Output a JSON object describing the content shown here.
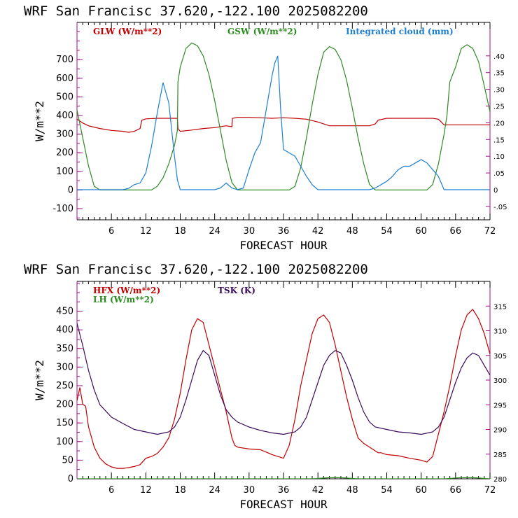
{
  "chart_data": [
    {
      "type": "line",
      "title": "WRF   San Francisc  37.620,-122.100  2025082200",
      "xlabel": "FORECAST HOUR",
      "ylabel": "W/m**2",
      "xlim": [
        0,
        72
      ],
      "ylim": [
        -160,
        900
      ],
      "y2lim": [
        -0.09,
        0.5
      ],
      "xticks": [
        "6",
        "12",
        "18",
        "24",
        "30",
        "36",
        "42",
        "48",
        "54",
        "60",
        "66",
        "72"
      ],
      "yticks": [
        "-100",
        "0",
        "100",
        "200",
        "300",
        "400",
        "500",
        "600",
        "700"
      ],
      "y2ticks": [
        "-.05",
        "0",
        ".05",
        ".10",
        ".15",
        ".20",
        ".25",
        ".30",
        ".35",
        ".40"
      ],
      "grid": false,
      "series": [
        {
          "name": "GLW (W/m**2)",
          "axis": "left",
          "color": "#c00000",
          "x": [
            0,
            1,
            2,
            4,
            6,
            8,
            9,
            10,
            11,
            11.3,
            12,
            14,
            16,
            17.5,
            17.6,
            18,
            20,
            22,
            24,
            26,
            27,
            27.1,
            28,
            30,
            32,
            34,
            36,
            38,
            40,
            42,
            44,
            46,
            48,
            50,
            51,
            52,
            52.5,
            54,
            56,
            58,
            60,
            62,
            63,
            64,
            66,
            68,
            70,
            72
          ],
          "y": [
            380,
            360,
            345,
            330,
            320,
            315,
            310,
            315,
            330,
            375,
            382,
            385,
            385,
            385,
            330,
            315,
            322,
            330,
            335,
            345,
            340,
            385,
            390,
            390,
            388,
            385,
            388,
            385,
            380,
            365,
            345,
            345,
            345,
            345,
            345,
            355,
            375,
            385,
            385,
            385,
            385,
            385,
            380,
            350,
            350,
            350,
            350,
            350
          ]
        },
        {
          "name": "GSW (W/m**2)",
          "axis": "left",
          "color": "#2e8b22",
          "x": [
            0,
            1,
            2,
            3,
            4,
            13,
            14,
            15,
            16,
            17,
            17.5,
            17.6,
            18,
            19,
            20,
            21,
            22,
            23,
            24,
            25,
            26,
            27,
            28,
            37,
            38,
            39,
            40,
            41,
            42,
            43,
            44,
            45,
            46,
            47,
            48,
            49,
            50,
            51,
            52,
            61,
            62,
            63,
            64,
            64.5,
            65,
            66,
            67,
            68,
            69,
            70,
            71,
            72
          ],
          "y": [
            430,
            280,
            130,
            20,
            0,
            0,
            20,
            65,
            140,
            240,
            320,
            580,
            660,
            760,
            790,
            775,
            720,
            620,
            480,
            320,
            160,
            40,
            0,
            0,
            20,
            120,
            280,
            460,
            620,
            740,
            770,
            755,
            700,
            590,
            440,
            280,
            140,
            30,
            0,
            0,
            30,
            140,
            300,
            400,
            580,
            660,
            760,
            780,
            760,
            690,
            560,
            420
          ]
        },
        {
          "name": "Integrated cloud (mm)",
          "axis": "right",
          "color": "#1f7fd0",
          "x": [
            0,
            8,
            9,
            10,
            11,
            12,
            13,
            14,
            15,
            16,
            17,
            17.5,
            18,
            24,
            25,
            26,
            27,
            28,
            29,
            30,
            31,
            32,
            33,
            34,
            34.5,
            35,
            35.5,
            36,
            37,
            38,
            39,
            40,
            41,
            42,
            50,
            51,
            52,
            53,
            54,
            55,
            56,
            57,
            58,
            59,
            60,
            61,
            62,
            63,
            64,
            72
          ],
          "y": [
            0,
            0,
            0.004,
            0.015,
            0.02,
            0.05,
            0.13,
            0.23,
            0.32,
            0.26,
            0.1,
            0.03,
            0,
            0,
            0.005,
            0.02,
            0.005,
            0,
            0.005,
            0.06,
            0.11,
            0.14,
            0.24,
            0.34,
            0.38,
            0.4,
            0.24,
            0.12,
            0.11,
            0.1,
            0.07,
            0.04,
            0.015,
            0,
            0,
            0,
            0.005,
            0.015,
            0.025,
            0.04,
            0.06,
            0.07,
            0.07,
            0.08,
            0.09,
            0.08,
            0.06,
            0.04,
            0,
            0
          ]
        }
      ]
    },
    {
      "type": "line",
      "title": "WRF   San Francisc  37.620,-122.100  2025082200",
      "xlabel": "FORECAST HOUR",
      "ylabel": "W/m**2",
      "xlim": [
        0,
        72
      ],
      "ylim": [
        0,
        530
      ],
      "y2lim": [
        280,
        320
      ],
      "xticks": [
        "6",
        "12",
        "18",
        "24",
        "30",
        "36",
        "42",
        "48",
        "54",
        "60",
        "66",
        "72"
      ],
      "yticks": [
        "0",
        "50",
        "100",
        "150",
        "200",
        "250",
        "300",
        "350",
        "400",
        "450"
      ],
      "y2ticks": [
        "280",
        "285",
        "290",
        "295",
        "300",
        "305",
        "310",
        "315"
      ],
      "grid": false,
      "series": [
        {
          "name": "HFX (W/m**2)",
          "axis": "left",
          "color": "#c00000",
          "x": [
            0,
            0.5,
            1,
            1.5,
            2,
            3,
            4,
            5,
            6,
            7,
            8,
            9,
            10,
            11,
            12,
            13,
            14,
            15,
            16,
            17,
            18,
            19,
            20,
            21,
            22,
            23,
            24,
            25,
            26,
            27,
            27.5,
            28,
            30,
            32,
            34,
            36,
            37,
            38,
            39,
            40,
            41,
            42,
            43,
            44,
            45,
            46,
            47,
            48,
            49,
            50,
            51,
            52,
            52.5,
            53,
            54,
            56,
            58,
            60,
            61,
            62,
            63,
            64,
            65,
            66,
            67,
            68,
            69,
            70,
            71,
            72
          ],
          "y": [
            210,
            245,
            200,
            195,
            140,
            85,
            55,
            40,
            32,
            28,
            28,
            30,
            33,
            38,
            55,
            60,
            68,
            85,
            110,
            160,
            230,
            320,
            400,
            430,
            420,
            360,
            300,
            240,
            180,
            110,
            90,
            85,
            80,
            78,
            65,
            55,
            90,
            160,
            250,
            320,
            390,
            430,
            440,
            420,
            360,
            290,
            220,
            160,
            110,
            95,
            85,
            75,
            70,
            70,
            65,
            62,
            55,
            50,
            45,
            60,
            120,
            180,
            250,
            330,
            400,
            440,
            455,
            430,
            390,
            335
          ]
        },
        {
          "name": "LH  (W/m**2)",
          "axis": "left",
          "color": "#2e8b22",
          "x": [
            0,
            40,
            41,
            42,
            43,
            44,
            45,
            46,
            47,
            48,
            49,
            50,
            64,
            65,
            66,
            67,
            68,
            69,
            70,
            71,
            72
          ],
          "y": [
            0,
            0,
            0,
            1,
            2,
            3,
            3,
            3,
            2,
            1,
            0,
            0,
            0,
            1,
            2,
            3,
            3,
            3,
            2,
            1,
            0
          ]
        },
        {
          "name": "TSK (K)",
          "axis": "right",
          "color": "#3a0a5c",
          "x": [
            0,
            1,
            2,
            3,
            4,
            6,
            8,
            10,
            12,
            14,
            16,
            17,
            18,
            19,
            20,
            21,
            22,
            23,
            24,
            25,
            26,
            27,
            28,
            30,
            32,
            34,
            36,
            38,
            39,
            40,
            41,
            42,
            43,
            44,
            45,
            46,
            47,
            48,
            49,
            50,
            51,
            52,
            54,
            56,
            58,
            60,
            62,
            63,
            64,
            65,
            66,
            67,
            68,
            69,
            70,
            71,
            72
          ],
          "y": [
            311.5,
            307,
            302,
            298,
            295,
            292.5,
            291.2,
            290,
            289.5,
            289,
            289.5,
            290.5,
            292.5,
            296,
            300,
            304,
            306,
            305,
            301,
            297,
            294,
            292.5,
            291.5,
            290.5,
            289.8,
            289.3,
            289,
            289.5,
            290.5,
            292.5,
            296,
            299.5,
            303,
            305,
            306,
            305.5,
            303,
            300,
            296.5,
            293.5,
            291.5,
            290.5,
            290,
            289.5,
            289.3,
            289,
            289.5,
            290.5,
            292.5,
            296,
            299.5,
            302.5,
            304.5,
            305.5,
            305,
            303,
            301
          ]
        }
      ]
    }
  ]
}
